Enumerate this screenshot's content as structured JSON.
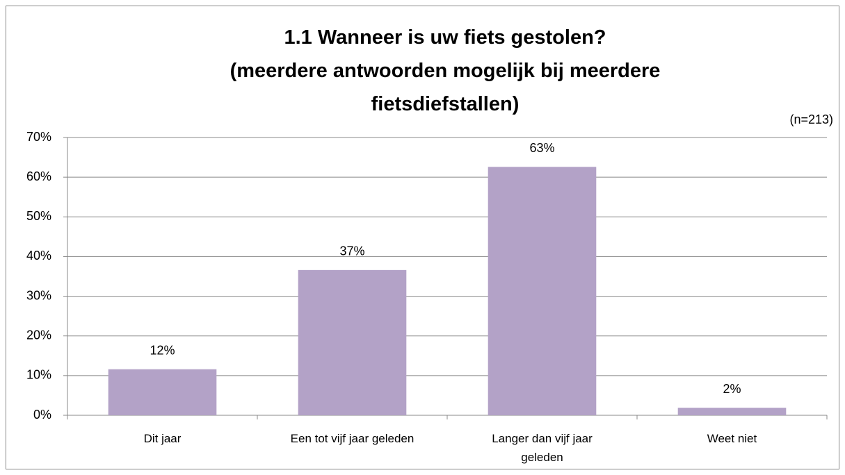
{
  "chart_data": {
    "type": "bar",
    "title": "1.1 Wanneer is uw fiets gestolen?\n(meerdere antwoorden mogelijk bij meerdere\nfietsdiefstallen)",
    "annotation": "(n=213)",
    "categories": [
      "Dit jaar",
      "Een tot vijf jaar geleden",
      "Langer dan vijf jaar\ngeleden",
      "Weet niet"
    ],
    "values": [
      11.6,
      36.6,
      62.6,
      1.9
    ],
    "value_labels": [
      "12%",
      "37%",
      "63%",
      "2%"
    ],
    "color": "#b3a2c7",
    "ylim": [
      0,
      70
    ],
    "yticks": [
      {
        "value": 0,
        "label": "0%"
      },
      {
        "value": 10,
        "label": "10%"
      },
      {
        "value": 20,
        "label": "20%"
      },
      {
        "value": 30,
        "label": "30%"
      },
      {
        "value": 40,
        "label": "40%"
      },
      {
        "value": 50,
        "label": "50%"
      },
      {
        "value": 60,
        "label": "60%"
      },
      {
        "value": 70,
        "label": "70%"
      }
    ],
    "grid": true
  }
}
